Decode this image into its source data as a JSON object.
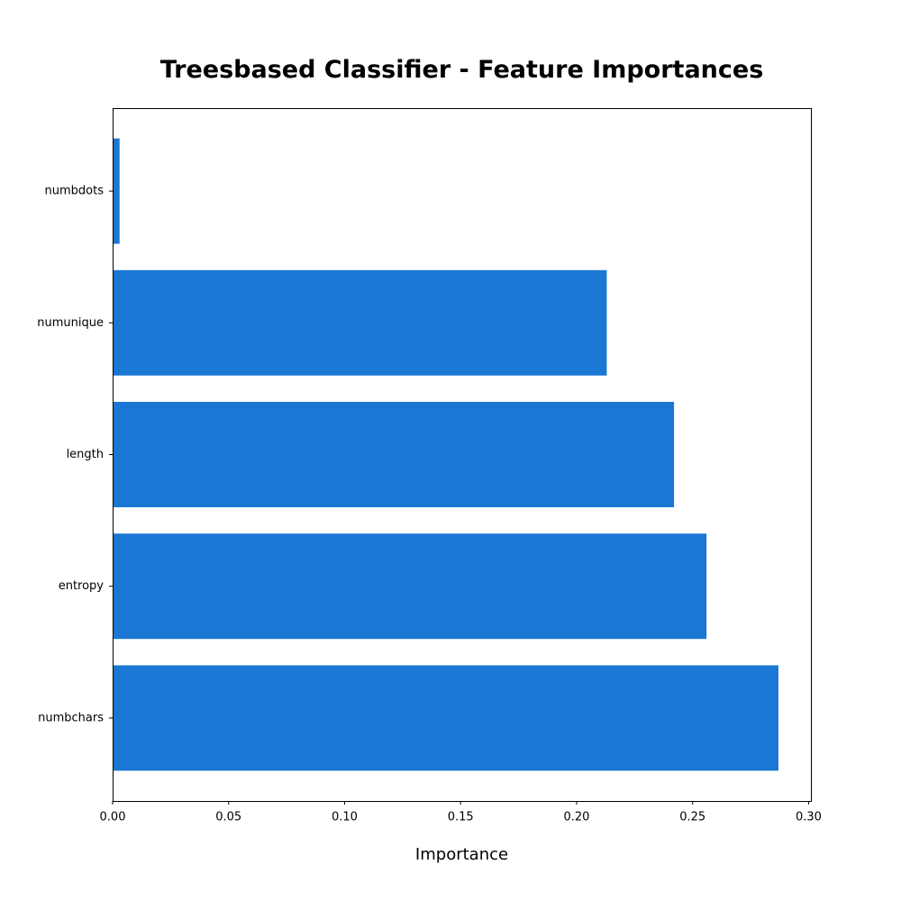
{
  "chart_data": {
    "type": "bar",
    "orientation": "horizontal",
    "title": "Treesbased Classifier - Feature Importances",
    "xlabel": "Importance",
    "ylabel": "",
    "categories": [
      "numbchars",
      "entropy",
      "length",
      "numunique",
      "numbdots"
    ],
    "values": [
      0.287,
      0.256,
      0.242,
      0.213,
      0.003
    ],
    "xlim": [
      0.0,
      0.301
    ],
    "xticks": [
      "0.00",
      "0.05",
      "0.10",
      "0.15",
      "0.20",
      "0.25",
      "0.30"
    ],
    "xtick_values": [
      0.0,
      0.05,
      0.1,
      0.15,
      0.2,
      0.25,
      0.3
    ],
    "bar_color": "#1a77d4",
    "grid": false,
    "legend": "none"
  }
}
